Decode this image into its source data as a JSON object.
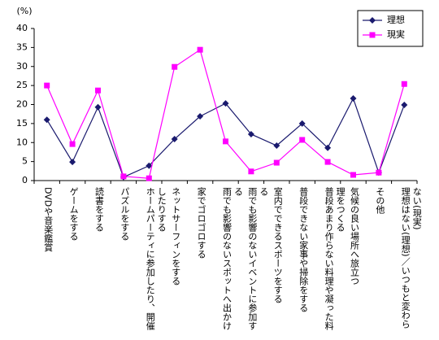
{
  "chart_data": {
    "type": "line",
    "y_label": "(%)",
    "categories": [
      "DVDや音楽鑑賞",
      "ゲームをする",
      "読書をする",
      "パズルをする",
      "ホームパーティに参加したり、開催したりする",
      "ネットサーフィンをする",
      "家でゴロゴロする",
      "雨でも影響のないスポットへ出かける",
      "雨でも影響のないイベントに参加する",
      "室内でできるスポーツをする",
      "普段できない家事や掃除をする",
      "普段あまり作らない料理や凝った料理をつくる",
      "気候の良い場所へ旅立つ",
      "その他",
      "理想はない(理想)／いつもと変わらない(現実)"
    ],
    "series": [
      {
        "name": "理想",
        "color": "#1a1a6e",
        "marker": "diamond",
        "values": [
          16.0,
          4.9,
          19.3,
          0.9,
          3.9,
          10.9,
          16.9,
          20.3,
          12.2,
          9.2,
          15.0,
          8.6,
          21.6,
          2.1,
          19.9
        ]
      },
      {
        "name": "現実",
        "color": "#ff00ff",
        "marker": "square",
        "values": [
          25.0,
          9.6,
          23.7,
          1.1,
          0.6,
          29.9,
          34.4,
          10.3,
          2.4,
          4.7,
          10.7,
          4.9,
          1.5,
          2.1,
          25.4
        ]
      }
    ],
    "ylim": [
      0,
      40
    ],
    "yticks": [
      0,
      5,
      10,
      15,
      20,
      25,
      30,
      35,
      40
    ],
    "legend": "top-right"
  }
}
